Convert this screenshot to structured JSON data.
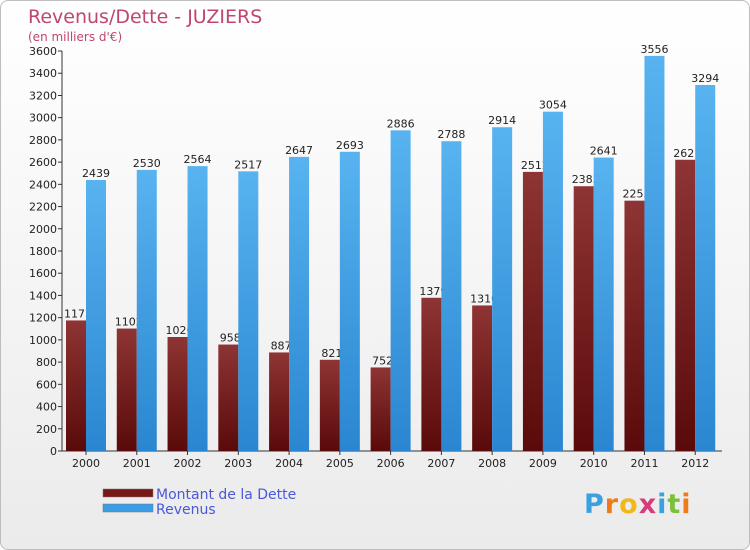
{
  "chart_data": {
    "type": "bar",
    "title": "Revenus/Dette - JUZIERS",
    "subtitle": "(en milliers d'€)",
    "categories": [
      "2000",
      "2001",
      "2002",
      "2003",
      "2004",
      "2005",
      "2006",
      "2007",
      "2008",
      "2009",
      "2010",
      "2011",
      "2012"
    ],
    "series": [
      {
        "name": "Montant de la Dette",
        "color": "#7a1818",
        "values": [
          1175,
          1102,
          1026,
          958,
          887,
          821,
          752,
          1379,
          1310,
          2512,
          2383,
          2253,
          2621
        ]
      },
      {
        "name": "Revenus",
        "color": "#3a9de6",
        "values": [
          2439,
          2530,
          2564,
          2517,
          2647,
          2693,
          2886,
          2788,
          2914,
          3054,
          2641,
          3556,
          3294
        ]
      }
    ],
    "ylim": [
      0,
      3600
    ],
    "yticks": [
      0,
      200,
      400,
      600,
      800,
      1000,
      1200,
      1400,
      1600,
      1800,
      2000,
      2200,
      2400,
      2600,
      2800,
      3000,
      3200,
      3400,
      3600
    ],
    "grid": false,
    "legend": "bottom-left"
  },
  "brand": {
    "letters": [
      "P",
      "r",
      "o",
      "x",
      "i",
      "t",
      "i"
    ],
    "colors": [
      "#3aa0e0",
      "#f07a1a",
      "#f0b818",
      "#d83a7a",
      "#3aa0e0",
      "#7ac03a",
      "#f07a1a"
    ]
  }
}
